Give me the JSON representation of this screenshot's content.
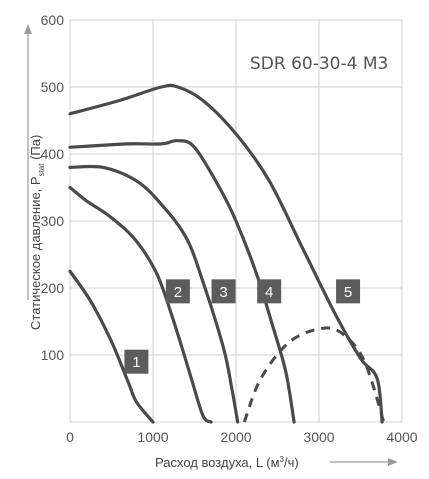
{
  "chart_data": {
    "type": "line",
    "title": "SDR 60-30-4 M3",
    "xlabel_main": "Расход воздуха, L (м",
    "xlabel_sup": "3",
    "xlabel_end": "/ч)",
    "ylabel_main": "Статическое давление, P",
    "ylabel_sub": "stat",
    "ylabel_end": " (Па)",
    "x_ticks": [
      "0",
      "1000",
      "2000",
      "3000",
      "4000"
    ],
    "y_ticks": [
      "100",
      "200",
      "300",
      "400",
      "500",
      "600"
    ],
    "xlim": [
      0,
      4000
    ],
    "ylim": [
      0,
      600
    ],
    "grid": true,
    "series": [
      {
        "name": "1",
        "points": [
          [
            0,
            225
          ],
          [
            250,
            180
          ],
          [
            500,
            120
          ],
          [
            700,
            60
          ],
          [
            800,
            30
          ],
          [
            1000,
            0
          ]
        ]
      },
      {
        "name": "2",
        "points": [
          [
            0,
            350
          ],
          [
            200,
            330
          ],
          [
            500,
            305
          ],
          [
            800,
            270
          ],
          [
            1050,
            220
          ],
          [
            1250,
            150
          ],
          [
            1450,
            70
          ],
          [
            1600,
            10
          ],
          [
            1700,
            0
          ]
        ]
      },
      {
        "name": "3",
        "points": [
          [
            0,
            380
          ],
          [
            400,
            380
          ],
          [
            800,
            360
          ],
          [
            1100,
            325
          ],
          [
            1400,
            275
          ],
          [
            1600,
            210
          ],
          [
            1850,
            110
          ],
          [
            1950,
            50
          ],
          [
            2020,
            0
          ]
        ]
      },
      {
        "name": "4",
        "points": [
          [
            0,
            410
          ],
          [
            700,
            415
          ],
          [
            1100,
            415
          ],
          [
            1300,
            420
          ],
          [
            1500,
            410
          ],
          [
            1800,
            350
          ],
          [
            2000,
            300
          ],
          [
            2250,
            220
          ],
          [
            2450,
            140
          ],
          [
            2600,
            75
          ],
          [
            2700,
            0
          ]
        ]
      },
      {
        "name": "5",
        "points": [
          [
            0,
            460
          ],
          [
            600,
            480
          ],
          [
            1100,
            500
          ],
          [
            1300,
            500
          ],
          [
            1600,
            480
          ],
          [
            2000,
            430
          ],
          [
            2400,
            360
          ],
          [
            2800,
            260
          ],
          [
            3200,
            160
          ],
          [
            3500,
            95
          ],
          [
            3700,
            65
          ],
          [
            3760,
            0
          ]
        ]
      }
    ],
    "efficiency_curve": [
      [
        2100,
        0
      ],
      [
        2300,
        65
      ],
      [
        2650,
        120
      ],
      [
        3050,
        140
      ],
      [
        3300,
        130
      ],
      [
        3550,
        90
      ],
      [
        3780,
        0
      ]
    ],
    "badges": [
      {
        "label": "1",
        "x": 800,
        "y": 90
      },
      {
        "label": "2",
        "x": 1300,
        "y": 195
      },
      {
        "label": "3",
        "x": 1850,
        "y": 195
      },
      {
        "label": "4",
        "x": 2400,
        "y": 195
      },
      {
        "label": "5",
        "x": 3350,
        "y": 195
      }
    ]
  },
  "colors": {
    "curve": "#4a4a4a",
    "badge": "#5c5c5c",
    "grid": "#d0d0d0",
    "arrow": "#9a9a9a"
  }
}
